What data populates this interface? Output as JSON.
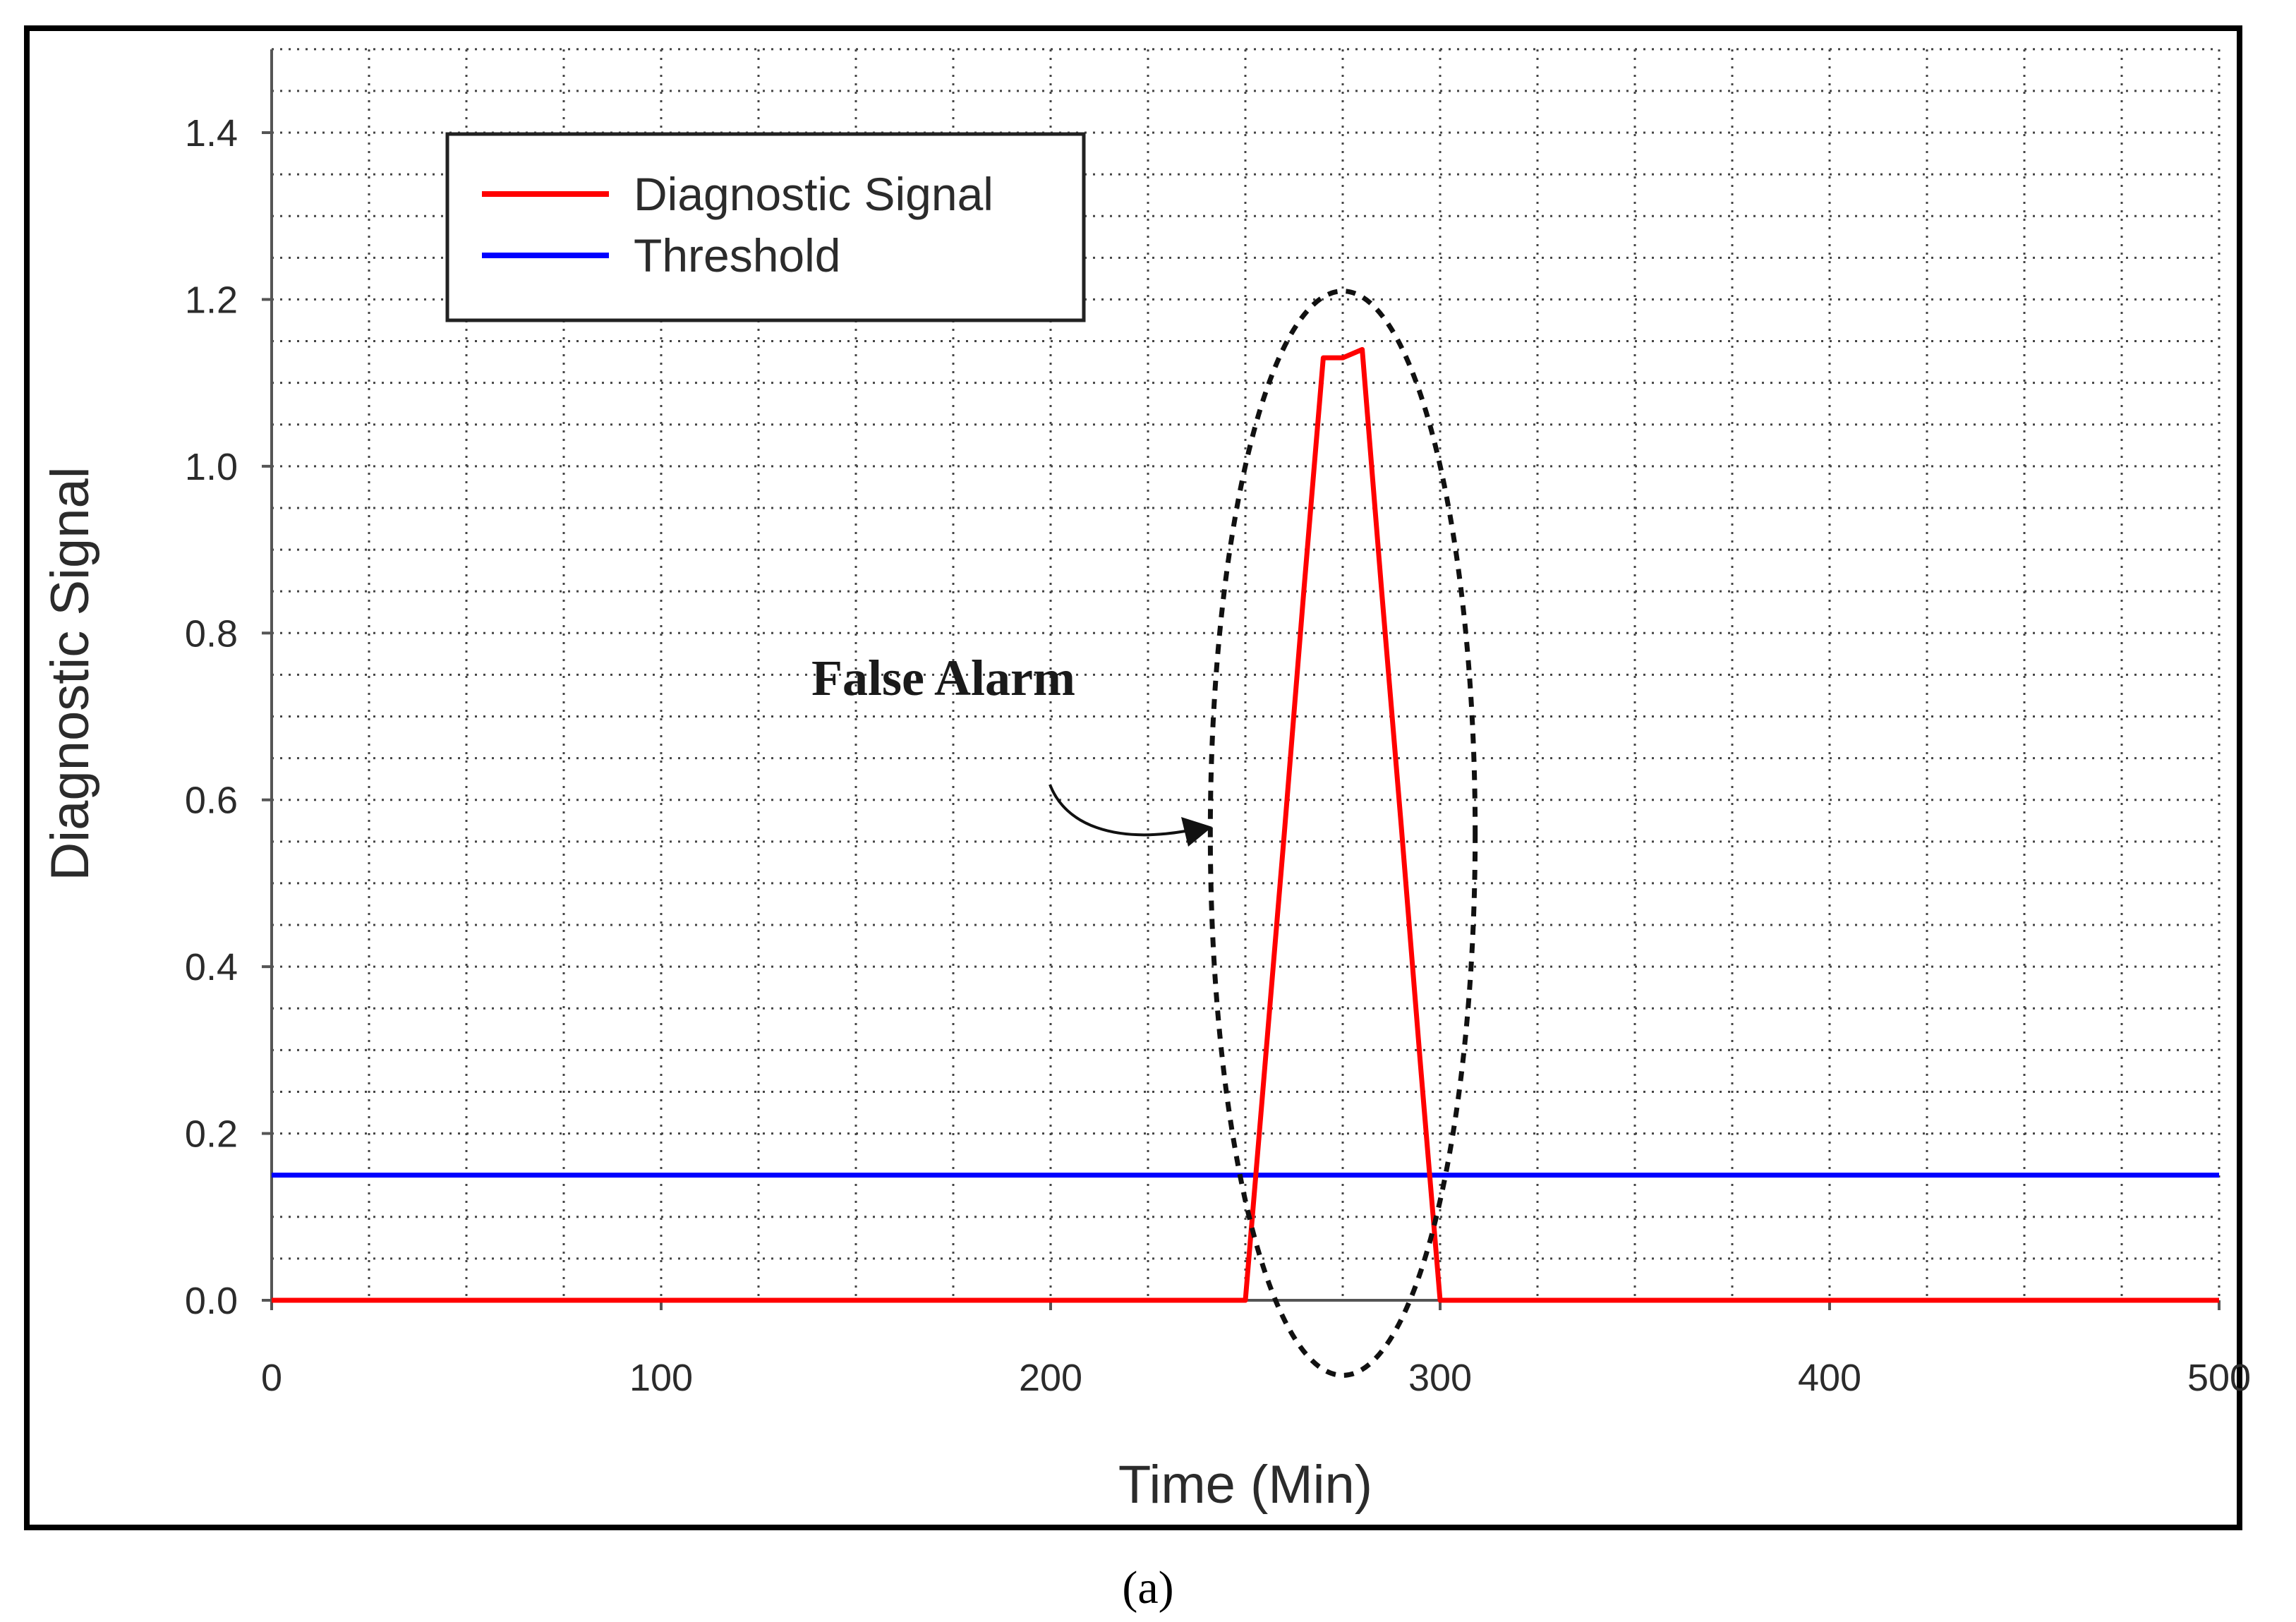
{
  "chart_data": {
    "type": "line",
    "xlabel": "Time (Min)",
    "ylabel": "Diagnostic Signal",
    "xlim": [
      0,
      500
    ],
    "ylim": [
      0,
      1.5
    ],
    "x_ticks": [
      0,
      100,
      200,
      300,
      400,
      500
    ],
    "x_tick_labels": [
      "0",
      "100",
      "200",
      "300",
      "400",
      "500"
    ],
    "y_ticks": [
      0,
      0.2,
      0.4,
      0.6,
      0.8,
      1.0,
      1.2,
      1.4
    ],
    "y_tick_labels": [
      "0.0",
      "0.2",
      "0.4",
      "0.6",
      "0.8",
      "1.0",
      "1.2",
      "1.4"
    ],
    "grid": true,
    "legend_position": "top-left",
    "series": [
      {
        "name": "Diagnostic Signal",
        "color": "#ff0000",
        "x": [
          0,
          250,
          255,
          260,
          265,
          270,
          275,
          280,
          285,
          290,
          295,
          300,
          500
        ],
        "y": [
          0,
          0,
          0.28,
          0.56,
          0.85,
          1.13,
          1.13,
          1.14,
          0.85,
          0.57,
          0.28,
          0,
          0
        ]
      },
      {
        "name": "Threshold",
        "color": "#0000ff",
        "x": [
          0,
          500
        ],
        "y": [
          0.15,
          0.15
        ]
      }
    ],
    "annotations": [
      {
        "text": "False Alarm",
        "ellipse_center": [
          275,
          0.56
        ],
        "ellipse_semi_axes": [
          34,
          0.65
        ]
      }
    ]
  },
  "caption": "(a)"
}
